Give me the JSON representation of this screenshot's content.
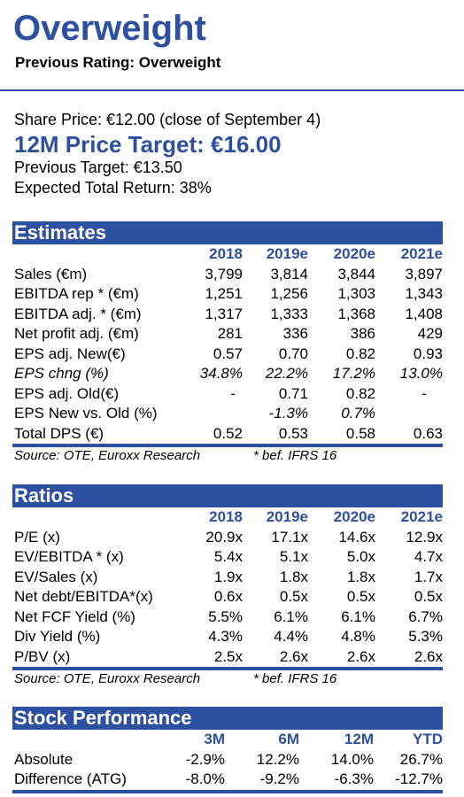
{
  "rating": "Overweight",
  "previous_rating": "Previous Rating: Overweight",
  "price": {
    "share_price": "Share Price: €12.00 (close of September 4)",
    "target": "12M Price Target: €16.00",
    "previous_target": "Previous Target: €13.50",
    "expected_return": "Expected Total Return: 38%"
  },
  "estimates": {
    "title": "Estimates",
    "years": [
      "2018",
      "2019e",
      "2020e",
      "2021e"
    ],
    "rows": [
      {
        "label": "Sales (€m)",
        "values": [
          "3,799",
          "3,814",
          "3,844",
          "3,897"
        ]
      },
      {
        "label": "EBITDA rep * (€m)",
        "values": [
          "1,251",
          "1,256",
          "1,303",
          "1,343"
        ]
      },
      {
        "label": "EBITDA adj. * (€m)",
        "values": [
          "1,317",
          "1,333",
          "1,368",
          "1,408"
        ]
      },
      {
        "label": "Net profit adj. (€m)",
        "values": [
          "281",
          "336",
          "386",
          "429"
        ]
      },
      {
        "label": "EPS adj. New(€)",
        "values": [
          "0.57",
          "0.70",
          "0.82",
          "0.93"
        ]
      },
      {
        "label": "EPS chng (%)",
        "values": [
          "34.8%",
          "22.2%",
          "17.2%",
          "13.0%"
        ]
      },
      {
        "label": "EPS adj. Old(€)",
        "values": [
          "-",
          "0.71",
          "0.82",
          "-"
        ]
      },
      {
        "label": "EPS New vs. Old (%)",
        "values": [
          "",
          "-1.3%",
          "0.7%",
          ""
        ]
      },
      {
        "label": "Total DPS (€)",
        "values": [
          "0.52",
          "0.53",
          "0.58",
          "0.63"
        ]
      }
    ],
    "source": "Source: OTE, Euroxx Research",
    "note": "* bef. IFRS 16"
  },
  "ratios": {
    "title": "Ratios",
    "years": [
      "2018",
      "2019e",
      "2020e",
      "2021e"
    ],
    "rows": [
      {
        "label": "P/E (x)",
        "values": [
          "20.9x",
          "17.1x",
          "14.6x",
          "12.9x"
        ]
      },
      {
        "label": "EV/EBITDA * (x)",
        "values": [
          "5.4x",
          "5.1x",
          "5.0x",
          "4.7x"
        ]
      },
      {
        "label": "EV/Sales (x)",
        "values": [
          "1.9x",
          "1.8x",
          "1.8x",
          "1.7x"
        ]
      },
      {
        "label": "Net debt/EBITDA*(x)",
        "values": [
          "0.6x",
          "0.5x",
          "0.5x",
          "0.5x"
        ]
      },
      {
        "label": "Net FCF Yield (%)",
        "values": [
          "5.5%",
          "6.1%",
          "6.1%",
          "6.7%"
        ]
      },
      {
        "label": "Div Yield (%)",
        "values": [
          "4.3%",
          "4.4%",
          "4.8%",
          "5.3%"
        ]
      },
      {
        "label": "P/BV (x)",
        "values": [
          "2.5x",
          "2.6x",
          "2.6x",
          "2.6x"
        ]
      }
    ],
    "source": "Source: OTE, Euroxx Research",
    "note": "* bef. IFRS 16"
  },
  "performance": {
    "title": "Stock Performance",
    "periods": [
      "3M",
      "6M",
      "12M",
      "YTD"
    ],
    "rows": [
      {
        "label": "Absolute",
        "values": [
          "-2.9%",
          "12.2%",
          "14.0%",
          "26.7%"
        ]
      },
      {
        "label": "Difference (ATG)",
        "values": [
          "-8.0%",
          "-9.2%",
          "-6.3%",
          "-12.7%"
        ]
      }
    ]
  },
  "colors": {
    "accent": "#2e50a0"
  }
}
